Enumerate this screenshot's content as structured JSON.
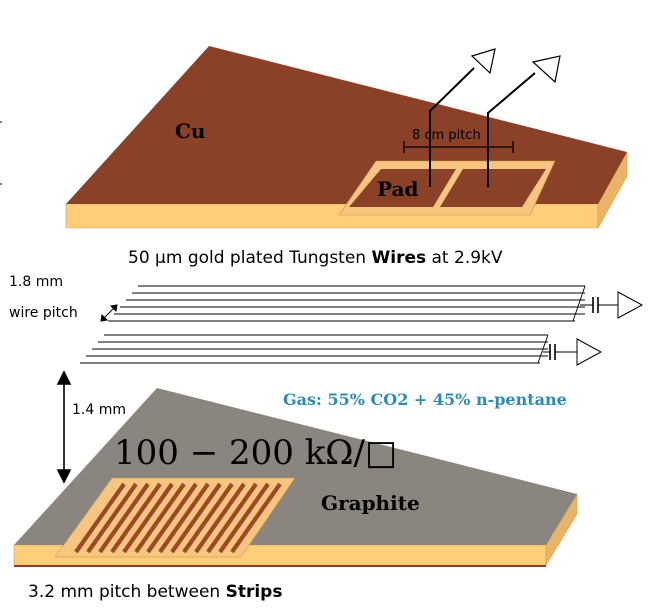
{
  "top_plate": {
    "material_label": "Cu",
    "pad_label": "Pad",
    "pitch_label": "8 cm pitch",
    "colors": {
      "copper": "#8b4128",
      "edge": "#ffce7a",
      "pad_frame": "#f6c57f"
    }
  },
  "wires": {
    "caption_prefix": "50 µm gold plated Tungsten ",
    "caption_bold": "Wires",
    "caption_suffix": " at 2.9kV",
    "pitch_value": "1.8 mm",
    "pitch_label": "wire pitch"
  },
  "gap": {
    "label": "1.4 mm"
  },
  "gas": {
    "label": "Gas: 55% CO2 + 45% n-pentane",
    "color": "#2a8ab8"
  },
  "bottom_plate": {
    "material_label": "Graphite",
    "resistivity_label": "100 − 200 kΩ/□",
    "colors": {
      "graphite": "#8a857e",
      "edge": "#ffce7a",
      "strip": "#9a4826"
    }
  },
  "strips": {
    "caption_prefix": "3.2 mm pitch between ",
    "caption_bold": "Strips"
  }
}
